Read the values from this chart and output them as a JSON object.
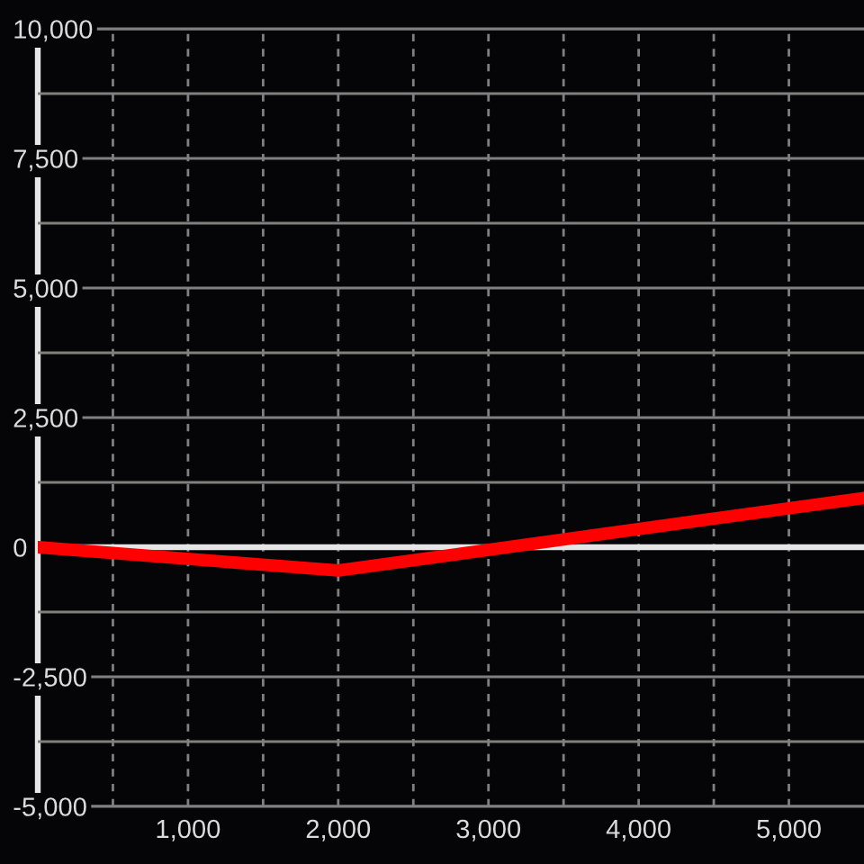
{
  "chart_data": {
    "type": "line",
    "x": [
      0,
      2000,
      5500
    ],
    "series": [
      {
        "color": "#ff0000",
        "values": [
          0,
          -450,
          950
        ]
      }
    ],
    "xlim": [
      0,
      5500
    ],
    "ylim": [
      -5000,
      10000
    ],
    "xticks": [
      {
        "value": 500,
        "label": null
      },
      {
        "value": 1000,
        "label": "1,000"
      },
      {
        "value": 1500,
        "label": null
      },
      {
        "value": 2000,
        "label": "2,000"
      },
      {
        "value": 2500,
        "label": null
      },
      {
        "value": 3000,
        "label": "3,000"
      },
      {
        "value": 3500,
        "label": null
      },
      {
        "value": 4000,
        "label": "4,000"
      },
      {
        "value": 4500,
        "label": null
      },
      {
        "value": 5000,
        "label": "5,000"
      }
    ],
    "yticks": [
      {
        "value": -5000,
        "label": "-5,000"
      },
      {
        "value": -3750,
        "label": null
      },
      {
        "value": -2500,
        "label": "-2,500"
      },
      {
        "value": -1250,
        "label": null
      },
      0,
      {
        "value": 1250,
        "label": null
      },
      {
        "value": 2500,
        "label": "2,500"
      },
      {
        "value": 3750,
        "label": null
      },
      {
        "value": 5000,
        "label": "5,000"
      },
      {
        "value": 6250,
        "label": null
      },
      {
        "value": 7500,
        "label": "7,500"
      },
      {
        "value": 8750,
        "label": null
      },
      {
        "value": 10000,
        "label": "10,000"
      }
    ],
    "grid": true,
    "ref_lines": [
      {
        "axis": "y",
        "value": 0,
        "color": "#e6e6e6"
      }
    ],
    "line_style": "solid"
  }
}
